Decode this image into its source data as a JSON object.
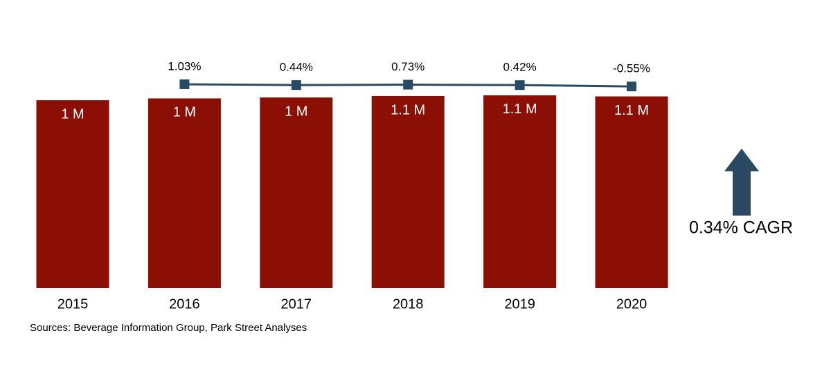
{
  "chart_data": {
    "type": "bar",
    "categories": [
      "2015",
      "2016",
      "2017",
      "2018",
      "2019",
      "2020"
    ],
    "series": [
      {
        "type": "bar",
        "color": "#8b0f04",
        "values": [
          1.03,
          1.04,
          1.045,
          1.053,
          1.057,
          1.051
        ],
        "value_labels": [
          "1 M",
          "1 M",
          "1 M",
          "1.1 M",
          "1.1 M",
          "1.1 M"
        ]
      },
      {
        "type": "line",
        "color": "#2a4a63",
        "values": [
          null,
          1.03,
          0.44,
          0.73,
          0.42,
          -0.55
        ],
        "value_labels": [
          null,
          "1.03%",
          "0.44%",
          "0.73%",
          "0.42%",
          "-0.55%"
        ]
      }
    ],
    "annotation": "0.34% CAGR",
    "source": "Sources: Beverage Information Group, Park Street Analyses"
  }
}
